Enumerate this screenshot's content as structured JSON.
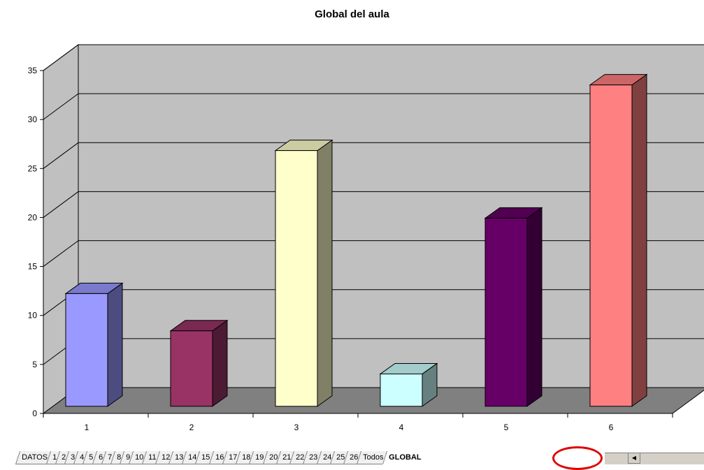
{
  "chart_data": {
    "type": "bar",
    "title": "Global del aula",
    "categories": [
      "1",
      "2",
      "3",
      "4",
      "5",
      "6"
    ],
    "values": [
      11.5,
      7.7,
      26.1,
      3.3,
      19.2,
      32.8
    ],
    "bar_colors": [
      {
        "front": "#9999ff",
        "side": "#4c4c80",
        "top": "#7a7acc"
      },
      {
        "front": "#993366",
        "side": "#4d1a33",
        "top": "#7a2952"
      },
      {
        "front": "#ffffcc",
        "side": "#808066",
        "top": "#ccccA3"
      },
      {
        "front": "#ccffff",
        "side": "#668080",
        "top": "#a3cccc"
      },
      {
        "front": "#660066",
        "side": "#330033",
        "top": "#520052"
      },
      {
        "front": "#ff8080",
        "side": "#804040",
        "top": "#cc6666"
      }
    ],
    "ylim": [
      0,
      35
    ],
    "y_ticks": [
      "0",
      "5",
      "10",
      "15",
      "20",
      "25",
      "30",
      "35"
    ],
    "grid": true,
    "style": "3d-column",
    "xlabel": "",
    "ylabel": ""
  },
  "sheet_tabs": [
    "DATOS",
    "1",
    "2",
    "3",
    "4",
    "5",
    "6",
    "7",
    "8",
    "9",
    "10",
    "11",
    "12",
    "13",
    "14",
    "15",
    "16",
    "17",
    "18",
    "19",
    "20",
    "21",
    "22",
    "23",
    "24",
    "25",
    "26",
    "Todos",
    "GLOBAL"
  ],
  "active_tab": "GLOBAL",
  "colors": {
    "wall": "#c0c0c0",
    "floor": "#808080",
    "grid": "#000000",
    "highlight": "#e00000"
  }
}
